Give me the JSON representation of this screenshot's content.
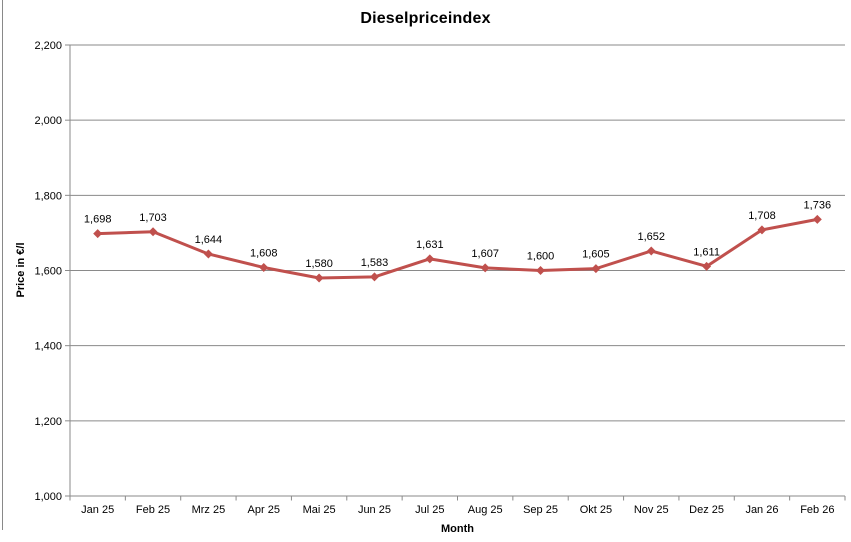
{
  "page": {
    "background": "#FFFFFF",
    "left_border_color": "#898989"
  },
  "chart_data": {
    "type": "line",
    "title": "Dieselpriceindex",
    "xlabel": "Month",
    "ylabel": "Price in €/l",
    "categories": [
      "Jan 25",
      "Feb 25",
      "Mrz 25",
      "Apr 25",
      "Mai 25",
      "Jun 25",
      "Jul 25",
      "Aug 25",
      "Sep 25",
      "Okt 25",
      "Nov 25",
      "Dez 25",
      "Jan 26",
      "Feb 26"
    ],
    "series": [
      {
        "name": "Dieselpriceindex",
        "values": [
          1698,
          1703,
          1644,
          1608,
          1580,
          1583,
          1631,
          1607,
          1600,
          1605,
          1652,
          1611,
          1708,
          1736
        ],
        "point_labels": [
          "1,698",
          "1,703",
          "1,644",
          "1,608",
          "1,580",
          "1,583",
          "1,631",
          "1,607",
          "1,600",
          "1,605",
          "1,652",
          "1,611",
          "1,708",
          "1,736"
        ],
        "color": "#C0504D",
        "marker": "diamond"
      }
    ],
    "ylim": [
      1000,
      2200
    ],
    "y_ticks": [
      {
        "value": 1000,
        "label": "1,000"
      },
      {
        "value": 1200,
        "label": "1,200"
      },
      {
        "value": 1400,
        "label": "1,400"
      },
      {
        "value": 1600,
        "label": "1,600"
      },
      {
        "value": 1800,
        "label": "1,800"
      },
      {
        "value": 2000,
        "label": "2,000"
      },
      {
        "value": 2200,
        "label": "2,200"
      }
    ],
    "grid": true,
    "legend": "none",
    "gridline_color": "#8A8A8A",
    "axis_color": "#8A8A8A",
    "data_label_color": "#000000"
  }
}
